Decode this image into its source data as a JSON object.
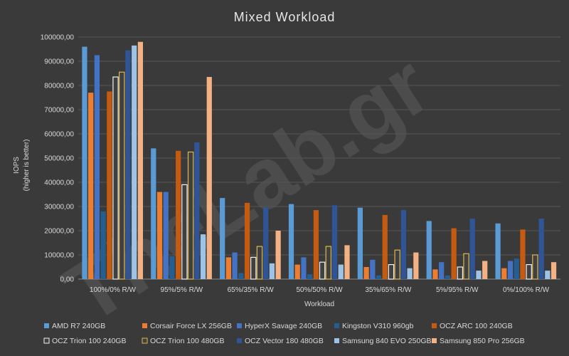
{
  "watermark": "TheLab.gr",
  "chart_data": {
    "type": "bar",
    "title": "Mixed Workload",
    "xlabel": "Workload",
    "ylabel": "IOPS",
    "ylabel_sub": "(higher is better)",
    "ylim": [
      0,
      100000
    ],
    "yticks": [
      0,
      10000,
      20000,
      30000,
      40000,
      50000,
      60000,
      70000,
      80000,
      90000,
      100000
    ],
    "ytick_labels": [
      "0,00",
      "10000,00",
      "20000,00",
      "30000,00",
      "40000,00",
      "50000,00",
      "60000,00",
      "70000,00",
      "80000,00",
      "90000,00",
      "100000,00"
    ],
    "grid": true,
    "legend_position": "bottom",
    "categories": [
      "100%/0% R/W",
      "95%/5% R/W",
      "65%/35% R/W",
      "50%/50% R/W",
      "35%/65% R/W",
      "5%/95% R/W",
      "0%/100% R/W"
    ],
    "series": [
      {
        "name": "AMD R7 240GB",
        "color": "#5b9bd5",
        "style": "solid",
        "values": [
          96000,
          54000,
          33500,
          31000,
          29500,
          24000,
          23000
        ]
      },
      {
        "name": "Corsair Force LX 256GB",
        "color": "#ed7d31",
        "style": "solid",
        "values": [
          77000,
          36000,
          9000,
          6000,
          5000,
          4000,
          4500
        ]
      },
      {
        "name": "HyperX Savage 240GB",
        "color": "#4472c4",
        "style": "solid",
        "values": [
          92500,
          36000,
          11000,
          9000,
          8000,
          7000,
          7500
        ]
      },
      {
        "name": "Kingston V310 960gb",
        "color": "#255e91",
        "style": "solid",
        "values": [
          28000,
          9500,
          2500,
          2000,
          1500,
          1500,
          8500
        ]
      },
      {
        "name": "OCZ ARC 100 240GB",
        "color": "#c55a11",
        "style": "solid",
        "values": [
          77500,
          53000,
          31500,
          28500,
          26500,
          21000,
          20500
        ]
      },
      {
        "name": "OCZ Trion 100 240GB",
        "color": "#404040",
        "style": "outline-white",
        "values": [
          83500,
          39000,
          9000,
          7000,
          6000,
          5000,
          6000
        ]
      },
      {
        "name": "OCZ Trion 100 480GB",
        "color": "#404040",
        "style": "outline-gold",
        "values": [
          85500,
          52500,
          13500,
          13500,
          12000,
          10500,
          10000
        ]
      },
      {
        "name": "OCZ Vector 180 480GB",
        "color": "#2f5597",
        "style": "solid",
        "values": [
          94500,
          56500,
          29500,
          30500,
          28500,
          25000,
          25000
        ]
      },
      {
        "name": "Samsung 840 EVO 250GB",
        "color": "#9dc3e6",
        "style": "solid",
        "values": [
          96500,
          18500,
          6500,
          6000,
          4500,
          3500,
          3500
        ]
      },
      {
        "name": "Samsung 850 Pro 256GB",
        "color": "#f4b183",
        "style": "solid",
        "values": [
          98000,
          83500,
          20000,
          14000,
          11000,
          7500,
          7000
        ]
      }
    ]
  }
}
